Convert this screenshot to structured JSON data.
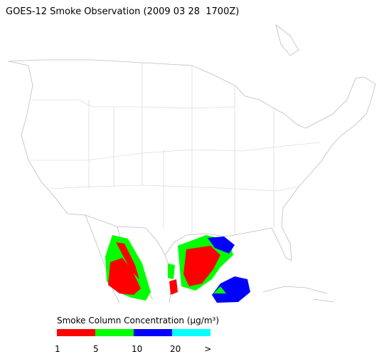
{
  "title": "GOES-12 Smoke Observation (2009 03 28  1700Z)",
  "legend": {
    "title": "Smoke Column Concentration (μg/m³)",
    "colors": [
      "#ff0000",
      "#00ff00",
      "#0000ff",
      "#00ffff"
    ],
    "labels": [
      "1",
      "5",
      "10",
      "20",
      ">"
    ]
  }
}
